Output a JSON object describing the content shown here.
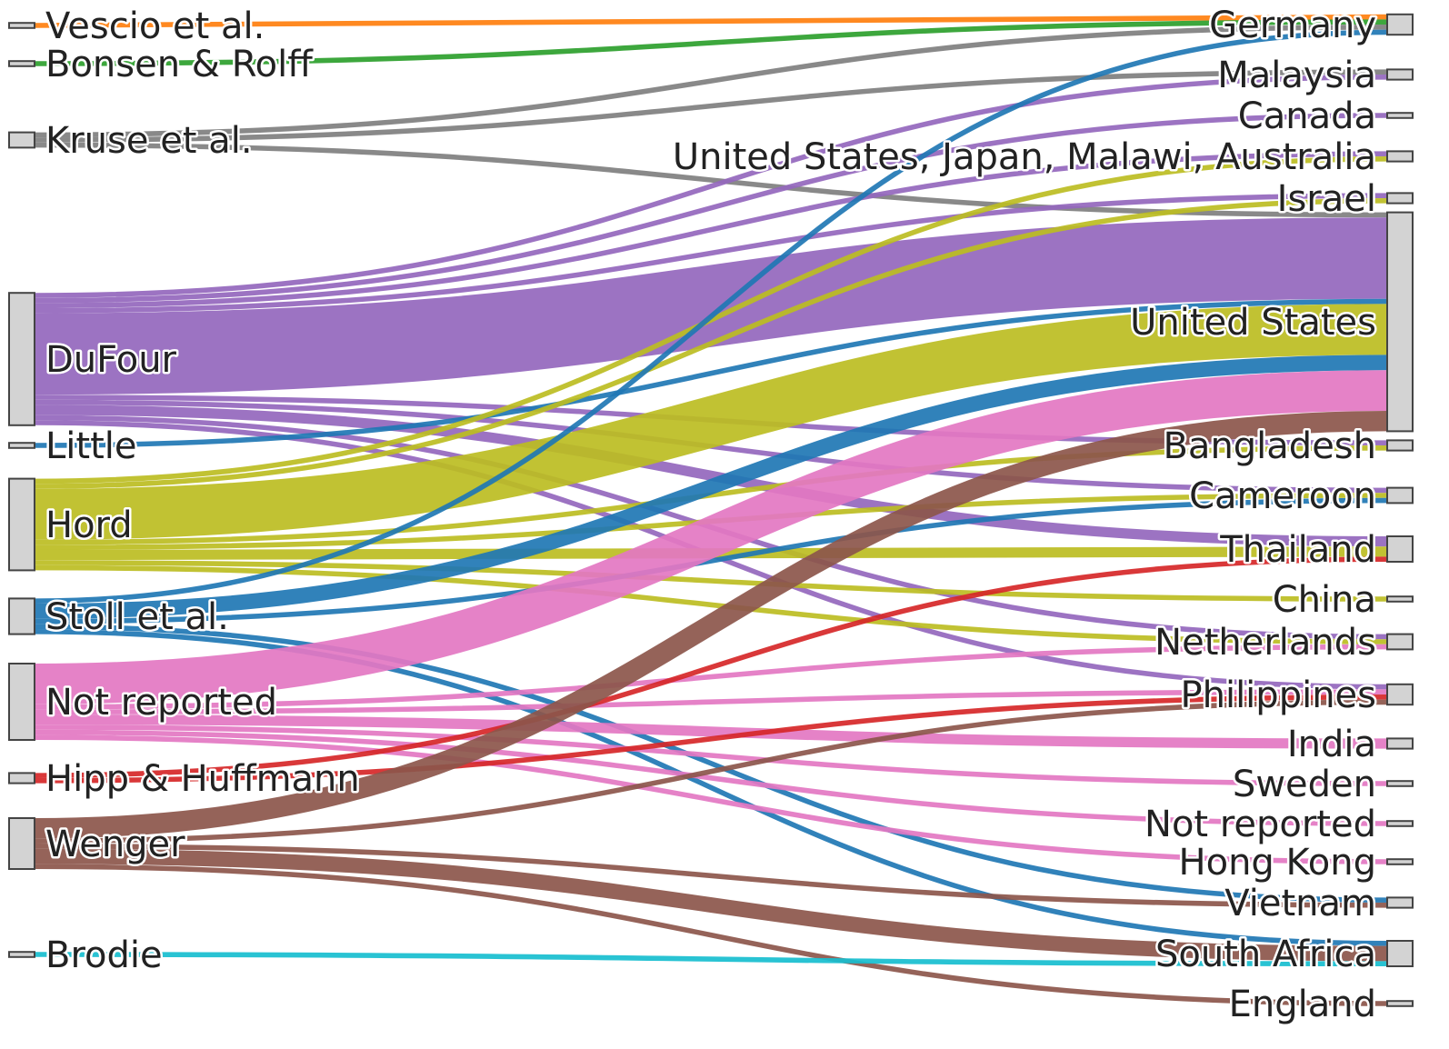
{
  "colors": {
    "orange": "#ff7f0e",
    "green": "#2ca02c",
    "gray": "#7f7f7f",
    "purple": "#9467bd",
    "blue": "#1f77b4",
    "olive": "#bcbd22",
    "pink": "#e377c2",
    "red": "#d62728",
    "brown": "#8c564b",
    "cyan": "#17becf",
    "node_fill": "#d3d3d3"
  },
  "sources": [
    {
      "id": "vescio",
      "label": "Vescio et al.",
      "color": "orange"
    },
    {
      "id": "bonsen",
      "label": "Bonsen & Rolff",
      "color": "green"
    },
    {
      "id": "kruse",
      "label": "Kruse et al.",
      "color": "gray"
    },
    {
      "id": "dufour",
      "label": "DuFour",
      "color": "purple"
    },
    {
      "id": "little",
      "label": "Little",
      "color": "blue"
    },
    {
      "id": "hord",
      "label": "Hord",
      "color": "olive"
    },
    {
      "id": "stoll",
      "label": "Stoll et al.",
      "color": "blue"
    },
    {
      "id": "notrep_src",
      "label": "Not reported",
      "color": "pink"
    },
    {
      "id": "hipp",
      "label": "Hipp & Huffmann",
      "color": "red"
    },
    {
      "id": "wenger",
      "label": "Wenger",
      "color": "brown"
    },
    {
      "id": "brodie",
      "label": "Brodie",
      "color": "cyan"
    }
  ],
  "targets": [
    {
      "id": "germany",
      "label": "Germany"
    },
    {
      "id": "malaysia",
      "label": "Malaysia"
    },
    {
      "id": "canada",
      "label": "Canada"
    },
    {
      "id": "us_multi",
      "label": "United States, Japan, Malawi, Australia"
    },
    {
      "id": "israel",
      "label": "Israel"
    },
    {
      "id": "usa",
      "label": "United States"
    },
    {
      "id": "bangladesh",
      "label": "Bangladesh"
    },
    {
      "id": "cameroon",
      "label": "Cameroon"
    },
    {
      "id": "thailand",
      "label": "Thailand"
    },
    {
      "id": "china",
      "label": "China"
    },
    {
      "id": "netherlands",
      "label": "Netherlands"
    },
    {
      "id": "philippines",
      "label": "Philippines"
    },
    {
      "id": "india",
      "label": "India"
    },
    {
      "id": "sweden",
      "label": "Sweden"
    },
    {
      "id": "notrep_tgt",
      "label": "Not reported"
    },
    {
      "id": "hongkong",
      "label": "Hong Kong"
    },
    {
      "id": "vietnam",
      "label": "Vietnam"
    },
    {
      "id": "southafrica",
      "label": "South Africa"
    },
    {
      "id": "england",
      "label": "England"
    }
  ],
  "links": [
    {
      "source": "vescio",
      "target": "germany",
      "value": 1
    },
    {
      "source": "bonsen",
      "target": "germany",
      "value": 1
    },
    {
      "source": "kruse",
      "target": "germany",
      "value": 1
    },
    {
      "source": "kruse",
      "target": "malaysia",
      "value": 1
    },
    {
      "source": "kruse",
      "target": "usa",
      "value": 1
    },
    {
      "source": "dufour",
      "target": "malaysia",
      "value": 1
    },
    {
      "source": "dufour",
      "target": "canada",
      "value": 1
    },
    {
      "source": "dufour",
      "target": "us_multi",
      "value": 1
    },
    {
      "source": "dufour",
      "target": "israel",
      "value": 1
    },
    {
      "source": "dufour",
      "target": "usa",
      "value": 16
    },
    {
      "source": "dufour",
      "target": "bangladesh",
      "value": 1
    },
    {
      "source": "dufour",
      "target": "cameroon",
      "value": 1
    },
    {
      "source": "dufour",
      "target": "thailand",
      "value": 2
    },
    {
      "source": "dufour",
      "target": "netherlands",
      "value": 1
    },
    {
      "source": "dufour",
      "target": "philippines",
      "value": 1
    },
    {
      "source": "little",
      "target": "usa",
      "value": 1
    },
    {
      "source": "hord",
      "target": "us_multi",
      "value": 1
    },
    {
      "source": "hord",
      "target": "israel",
      "value": 1
    },
    {
      "source": "hord",
      "target": "usa",
      "value": 10
    },
    {
      "source": "hord",
      "target": "bangladesh",
      "value": 1
    },
    {
      "source": "hord",
      "target": "cameroon",
      "value": 1
    },
    {
      "source": "hord",
      "target": "thailand",
      "value": 2
    },
    {
      "source": "hord",
      "target": "china",
      "value": 1
    },
    {
      "source": "hord",
      "target": "netherlands",
      "value": 1
    },
    {
      "source": "stoll",
      "target": "germany",
      "value": 1
    },
    {
      "source": "stoll",
      "target": "usa",
      "value": 3
    },
    {
      "source": "stoll",
      "target": "cameroon",
      "value": 1
    },
    {
      "source": "stoll",
      "target": "vietnam",
      "value": 1
    },
    {
      "source": "stoll",
      "target": "southafrica",
      "value": 1
    },
    {
      "source": "notrep_src",
      "target": "usa",
      "value": 8
    },
    {
      "source": "notrep_src",
      "target": "netherlands",
      "value": 1
    },
    {
      "source": "notrep_src",
      "target": "philippines",
      "value": 1
    },
    {
      "source": "notrep_src",
      "target": "india",
      "value": 2
    },
    {
      "source": "notrep_src",
      "target": "sweden",
      "value": 1
    },
    {
      "source": "notrep_src",
      "target": "notrep_tgt",
      "value": 1
    },
    {
      "source": "notrep_src",
      "target": "hongkong",
      "value": 1
    },
    {
      "source": "hipp",
      "target": "thailand",
      "value": 1
    },
    {
      "source": "hipp",
      "target": "philippines",
      "value": 1
    },
    {
      "source": "wenger",
      "target": "usa",
      "value": 4
    },
    {
      "source": "wenger",
      "target": "philippines",
      "value": 1
    },
    {
      "source": "wenger",
      "target": "vietnam",
      "value": 1
    },
    {
      "source": "wenger",
      "target": "southafrica",
      "value": 3
    },
    {
      "source": "wenger",
      "target": "england",
      "value": 1
    },
    {
      "source": "brodie",
      "target": "southafrica",
      "value": 1
    }
  ]
}
